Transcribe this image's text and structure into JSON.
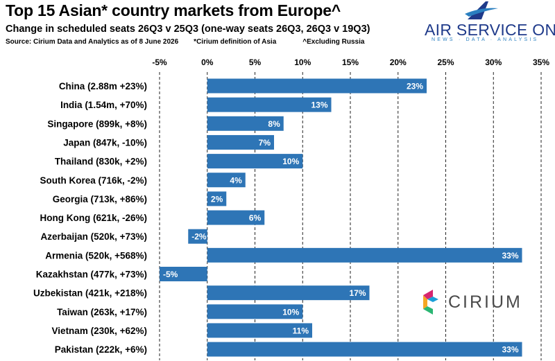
{
  "header": {
    "title": "Top 15 Asian* country markets from Europe^",
    "subtitle": "Change in scheduled seats 26Q3 v 25Q3 (one-way seats 26Q3, 26Q3 v 19Q3)",
    "source": "Source: Cirium Data and Analytics as of 8 June 2026",
    "note_asia": "*Cirium definition of Asia",
    "note_russia": "^Excluding Russia"
  },
  "logos": {
    "air_service_one": "AIR SERVICE ONE",
    "air_service_one_tagline": "NEWS · DATA · ANALYSIS",
    "cirium": "CIRIUM"
  },
  "colors": {
    "bar": "#2E75B6",
    "grid": "#222222",
    "logo_blue": "#1f3a8a"
  },
  "chart_data": {
    "type": "bar",
    "orientation": "horizontal",
    "categories": [
      "China (2.88m +23%)",
      "India (1.54m, +70%)",
      "Singapore (899k, +8%)",
      "Japan (847k, -10%)",
      "Thailand (830k, +2%)",
      "South Korea (716k, -2%)",
      "Georgia (713k, +86%)",
      "Hong Kong (621k, -26%)",
      "Azerbaijan (520k, +73%)",
      "Armenia (520k, +568%)",
      "Kazakhstan (477k, +73%)",
      "Uzbekistan (421k, +218%)",
      "Taiwan (263k, +17%)",
      "Vietnam (230k, +62%)",
      "Pakistan (222k, +6%)"
    ],
    "values": [
      23,
      13,
      8,
      7,
      10,
      4,
      2,
      6,
      -2,
      33,
      -5,
      17,
      10,
      11,
      33
    ],
    "data_labels": [
      "23%",
      "13%",
      "8%",
      "7%",
      "10%",
      "4%",
      "2%",
      "6%",
      "-2%",
      "33%",
      "-5%",
      "17%",
      "10%",
      "11%",
      "33%"
    ],
    "xlim": [
      -5,
      35
    ],
    "x_ticks": [
      -5,
      0,
      5,
      10,
      15,
      20,
      25,
      30,
      35
    ],
    "x_tick_labels": [
      "-5%",
      "0%",
      "5%",
      "10%",
      "15%",
      "20%",
      "25%",
      "30%",
      "35%"
    ],
    "grid": "vertical dashed",
    "legend": "none"
  }
}
